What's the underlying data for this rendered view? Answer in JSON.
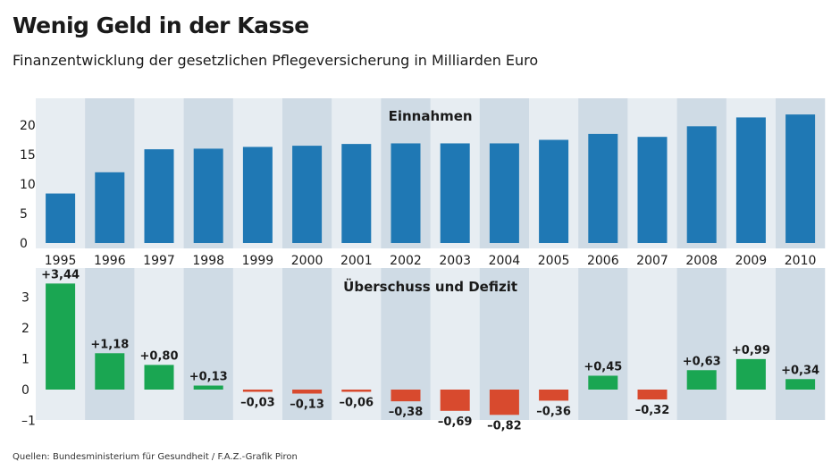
{
  "title": "Wenig Geld in der Kasse",
  "subtitle": "Finanzentwicklung der gesetzlichen Pflegeversicherung in Milliarden Euro",
  "source": "Quellen: Bundesministerium für Gesundheit / F.A.Z.-Grafik Piron",
  "colors": {
    "panel_bg": "#e7edf2",
    "stripe_bg": "#cfdbe5",
    "income_bar": "#1f78b4",
    "surplus_bar": "#1aa652",
    "deficit_bar": "#d84a2e",
    "text": "#1a1a1a"
  },
  "chart_data": [
    {
      "type": "bar",
      "title": "Einnahmen",
      "categories": [
        "1995",
        "1996",
        "1997",
        "1998",
        "1999",
        "2000",
        "2001",
        "2002",
        "2003",
        "2004",
        "2005",
        "2006",
        "2007",
        "2008",
        "2009",
        "2010"
      ],
      "values": [
        8.4,
        12.0,
        15.9,
        16.0,
        16.3,
        16.5,
        16.8,
        16.9,
        16.9,
        16.9,
        17.5,
        18.5,
        18.0,
        19.8,
        21.3,
        21.8
      ],
      "ylim": [
        0,
        23
      ],
      "yticks": [
        "0",
        "5",
        "10",
        "15",
        "20"
      ],
      "ytick_values": [
        0,
        5,
        10,
        15,
        20
      ],
      "xlabel": "",
      "ylabel": ""
    },
    {
      "type": "bar",
      "title": "Überschuss und Defizit",
      "categories": [
        "1995",
        "1996",
        "1997",
        "1998",
        "1999",
        "2000",
        "2001",
        "2002",
        "2003",
        "2004",
        "2005",
        "2006",
        "2007",
        "2008",
        "2009",
        "2010"
      ],
      "values": [
        3.44,
        1.18,
        0.8,
        0.13,
        -0.03,
        -0.13,
        -0.06,
        -0.38,
        -0.69,
        -0.82,
        -0.36,
        0.45,
        -0.32,
        0.63,
        0.99,
        0.34
      ],
      "labels": [
        "+3,44",
        "+1,18",
        "+0,80",
        "+0,13",
        "–0,03",
        "–0,13",
        "–0,06",
        "–0,38",
        "–0,69",
        "–0,82",
        "–0,36",
        "+0,45",
        "–0,32",
        "+0,63",
        "+0,99",
        "+0,34"
      ],
      "ylim": [
        -1.1,
        3.6
      ],
      "yticks": [
        "3",
        "2",
        "1",
        "0",
        "–1"
      ],
      "ytick_values": [
        3,
        2,
        1,
        0,
        -1
      ],
      "xlabel": "",
      "ylabel": ""
    }
  ]
}
